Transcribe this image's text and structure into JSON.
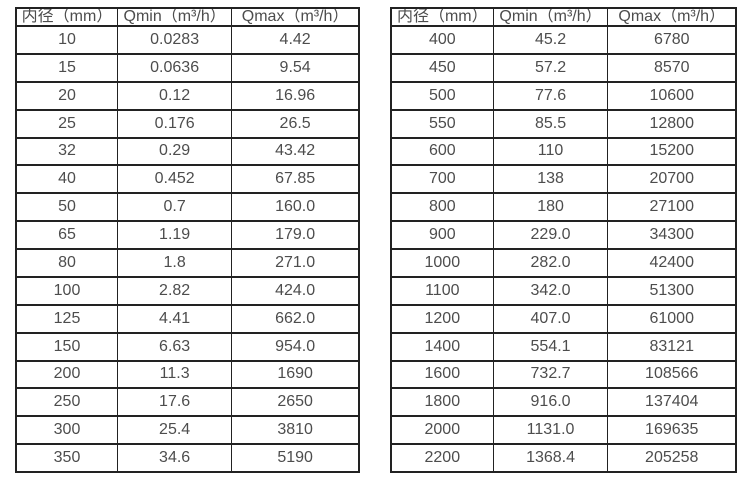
{
  "theme": {
    "background": "#ffffff",
    "border_color": "#222222",
    "text_color": "#4d4d4d"
  },
  "tables": [
    {
      "name": "flow-rate-table-small-diameters",
      "headers": [
        "内径（mm）",
        "Qmin（m³/h）",
        "Qmax（m³/h）"
      ],
      "rows": [
        [
          "10",
          "0.0283",
          "4.42"
        ],
        [
          "15",
          "0.0636",
          "9.54"
        ],
        [
          "20",
          "0.12",
          "16.96"
        ],
        [
          "25",
          "0.176",
          "26.5"
        ],
        [
          "32",
          "0.29",
          "43.42"
        ],
        [
          "40",
          "0.452",
          "67.85"
        ],
        [
          "50",
          "0.7",
          "160.0"
        ],
        [
          "65",
          "1.19",
          "179.0"
        ],
        [
          "80",
          "1.8",
          "271.0"
        ],
        [
          "100",
          "2.82",
          "424.0"
        ],
        [
          "125",
          "4.41",
          "662.0"
        ],
        [
          "150",
          "6.63",
          "954.0"
        ],
        [
          "200",
          "11.3",
          "1690"
        ],
        [
          "250",
          "17.6",
          "2650"
        ],
        [
          "300",
          "25.4",
          "3810"
        ],
        [
          "350",
          "34.6",
          "5190"
        ]
      ]
    },
    {
      "name": "flow-rate-table-large-diameters",
      "headers": [
        "内径（mm）",
        "Qmin（m³/h）",
        "Qmax（m³/h）"
      ],
      "rows": [
        [
          "400",
          "45.2",
          "6780"
        ],
        [
          "450",
          "57.2",
          "8570"
        ],
        [
          "500",
          "77.6",
          "10600"
        ],
        [
          "550",
          "85.5",
          "12800"
        ],
        [
          "600",
          "110",
          "15200"
        ],
        [
          "700",
          "138",
          "20700"
        ],
        [
          "800",
          "180",
          "27100"
        ],
        [
          "900",
          "229.0",
          "34300"
        ],
        [
          "1000",
          "282.0",
          "42400"
        ],
        [
          "1100",
          "342.0",
          "51300"
        ],
        [
          "1200",
          "407.0",
          "61000"
        ],
        [
          "1400",
          "554.1",
          "83121"
        ],
        [
          "1600",
          "732.7",
          "108566"
        ],
        [
          "1800",
          "916.0",
          "137404"
        ],
        [
          "2000",
          "1131.0",
          "169635"
        ],
        [
          "2200",
          "1368.4",
          "205258"
        ]
      ]
    }
  ]
}
